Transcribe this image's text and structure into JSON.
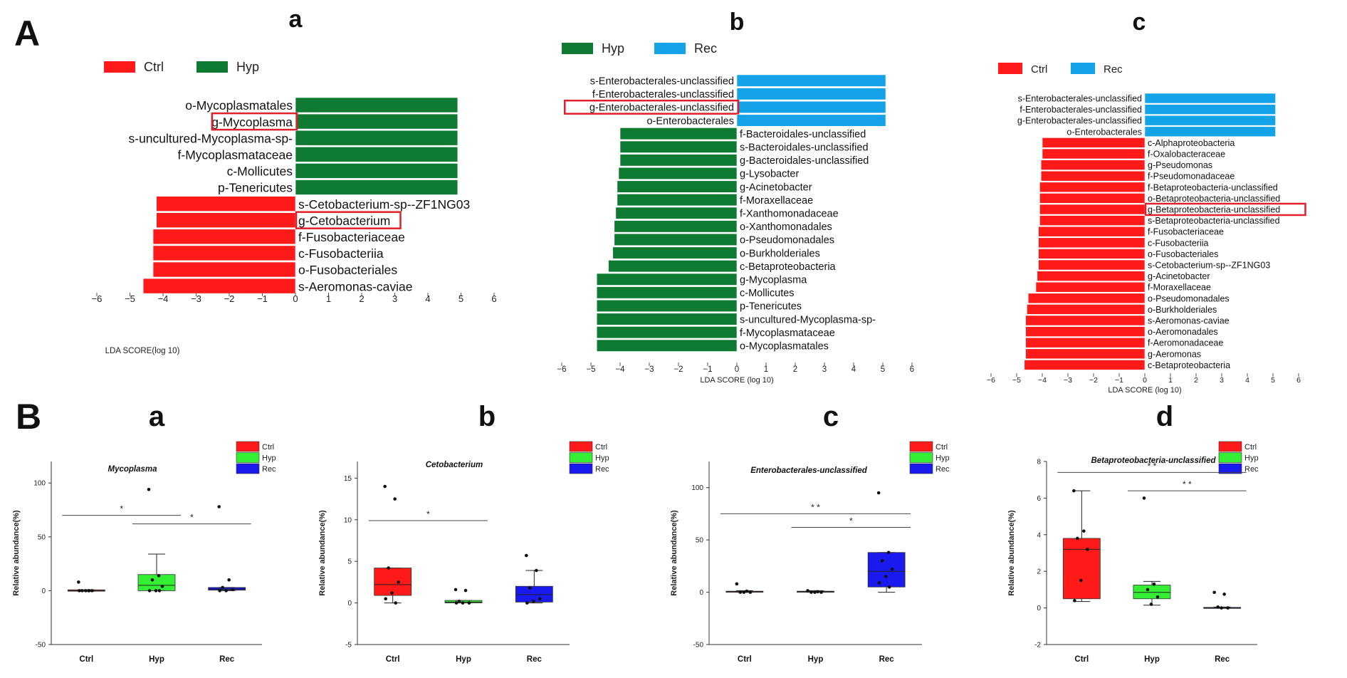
{
  "figure": {
    "panel_A": "A",
    "panel_B": "B",
    "colors": {
      "Ctrl": "#ff1a1a",
      "Hyp": "#0f7a32",
      "Rec": "#14a3e6",
      "Hyp_box": "#33ee33",
      "Rec_box": "#1a1aee",
      "highlight": "#e0202a"
    }
  },
  "chart_data": [
    {
      "id": "A_a",
      "type": "bar",
      "orientation": "horizontal",
      "panel": "a",
      "xlabel": "LDA SCORE(log 10)",
      "xlim": [
        -6,
        6
      ],
      "ticks": [
        -6,
        -5,
        -4,
        -3,
        -2,
        -1,
        0,
        1,
        2,
        3,
        4,
        5,
        6
      ],
      "legend": [
        "Ctrl",
        "Hyp"
      ],
      "legend_position": "top-left",
      "bars": [
        {
          "label": "o-Mycoplasmatales",
          "value": 4.9,
          "group": "Hyp"
        },
        {
          "label": "g-Mycoplasma",
          "value": 4.9,
          "group": "Hyp",
          "highlight": true
        },
        {
          "label": "s-uncultured-Mycoplasma-sp-",
          "value": 4.9,
          "group": "Hyp"
        },
        {
          "label": "f-Mycoplasmataceae",
          "value": 4.9,
          "group": "Hyp"
        },
        {
          "label": "c-Mollicutes",
          "value": 4.9,
          "group": "Hyp"
        },
        {
          "label": "p-Tenericutes",
          "value": 4.9,
          "group": "Hyp"
        },
        {
          "label": "s-Cetobacterium-sp--ZF1NG03",
          "value": -4.2,
          "group": "Ctrl"
        },
        {
          "label": "g-Cetobacterium",
          "value": -4.2,
          "group": "Ctrl",
          "highlight": true
        },
        {
          "label": "f-Fusobacteriaceae",
          "value": -4.3,
          "group": "Ctrl"
        },
        {
          "label": "c-Fusobacteriia",
          "value": -4.3,
          "group": "Ctrl"
        },
        {
          "label": "o-Fusobacteriales",
          "value": -4.3,
          "group": "Ctrl"
        },
        {
          "label": "s-Aeromonas-caviae",
          "value": -4.6,
          "group": "Ctrl"
        }
      ]
    },
    {
      "id": "A_b",
      "type": "bar",
      "orientation": "horizontal",
      "panel": "b",
      "xlabel": "LDA SCORE (log 10)",
      "xlim": [
        -6,
        6
      ],
      "ticks": [
        -6,
        -5,
        -4,
        -3,
        -2,
        -1,
        0,
        1,
        2,
        3,
        4,
        5,
        6
      ],
      "legend": [
        "Hyp",
        "Rec"
      ],
      "legend_position": "top-left",
      "bars": [
        {
          "label": "s-Enterobacterales-unclassified",
          "value": 5.1,
          "group": "Rec"
        },
        {
          "label": "f-Enterobacterales-unclassified",
          "value": 5.1,
          "group": "Rec"
        },
        {
          "label": "g-Enterobacterales-unclassified",
          "value": 5.1,
          "group": "Rec",
          "highlight": true
        },
        {
          "label": "o-Enterobacterales",
          "value": 5.1,
          "group": "Rec"
        },
        {
          "label": "f-Bacteroidales-unclassified",
          "value": -4.0,
          "group": "Hyp"
        },
        {
          "label": "s-Bacteroidales-unclassified",
          "value": -4.0,
          "group": "Hyp"
        },
        {
          "label": "g-Bacteroidales-unclassified",
          "value": -4.0,
          "group": "Hyp"
        },
        {
          "label": "g-Lysobacter",
          "value": -4.05,
          "group": "Hyp"
        },
        {
          "label": "g-Acinetobacter",
          "value": -4.1,
          "group": "Hyp"
        },
        {
          "label": "f-Moraxellaceae",
          "value": -4.1,
          "group": "Hyp"
        },
        {
          "label": "f-Xanthomonadaceae",
          "value": -4.15,
          "group": "Hyp"
        },
        {
          "label": "o-Xanthomonadales",
          "value": -4.2,
          "group": "Hyp"
        },
        {
          "label": "o-Pseudomonadales",
          "value": -4.2,
          "group": "Hyp"
        },
        {
          "label": "o-Burkholderiales",
          "value": -4.25,
          "group": "Hyp"
        },
        {
          "label": "c-Betaproteobacteria",
          "value": -4.4,
          "group": "Hyp"
        },
        {
          "label": "g-Mycoplasma",
          "value": -4.8,
          "group": "Hyp"
        },
        {
          "label": "c-Mollicutes",
          "value": -4.8,
          "group": "Hyp"
        },
        {
          "label": "p-Tenericutes",
          "value": -4.8,
          "group": "Hyp"
        },
        {
          "label": "s-uncultured-Mycoplasma-sp-",
          "value": -4.8,
          "group": "Hyp"
        },
        {
          "label": "f-Mycoplasmataceae",
          "value": -4.8,
          "group": "Hyp"
        },
        {
          "label": "o-Mycoplasmatales",
          "value": -4.8,
          "group": "Hyp"
        }
      ]
    },
    {
      "id": "A_c",
      "type": "bar",
      "orientation": "horizontal",
      "panel": "c",
      "xlabel": "LDA SCORE (log 10)",
      "xlim": [
        -6,
        6
      ],
      "ticks": [
        -6,
        -5,
        -4,
        -3,
        -2,
        -1,
        0,
        1,
        2,
        3,
        4,
        5,
        6
      ],
      "legend": [
        "Ctrl",
        "Rec"
      ],
      "legend_position": "top-left",
      "bars": [
        {
          "label": "s-Enterobacterales-unclassified",
          "value": 5.1,
          "group": "Rec"
        },
        {
          "label": "f-Enterobacterales-unclassified",
          "value": 5.1,
          "group": "Rec"
        },
        {
          "label": "g-Enterobacterales-unclassified",
          "value": 5.1,
          "group": "Rec"
        },
        {
          "label": "o-Enterobacterales",
          "value": 5.1,
          "group": "Rec"
        },
        {
          "label": "c-Alphaproteobacteria",
          "value": -4.0,
          "group": "Ctrl"
        },
        {
          "label": "f-Oxalobacteraceae",
          "value": -4.0,
          "group": "Ctrl"
        },
        {
          "label": "g-Pseudomonas",
          "value": -4.05,
          "group": "Ctrl"
        },
        {
          "label": "f-Pseudomonadaceae",
          "value": -4.05,
          "group": "Ctrl"
        },
        {
          "label": "f-Betaproteobacteria-unclassified",
          "value": -4.1,
          "group": "Ctrl"
        },
        {
          "label": "o-Betaproteobacteria-unclassified",
          "value": -4.1,
          "group": "Ctrl"
        },
        {
          "label": "g-Betaproteobacteria-unclassified",
          "value": -4.1,
          "group": "Ctrl",
          "highlight": true
        },
        {
          "label": "s-Betaproteobacteria-unclassified",
          "value": -4.1,
          "group": "Ctrl"
        },
        {
          "label": "f-Fusobacteriaceae",
          "value": -4.15,
          "group": "Ctrl"
        },
        {
          "label": "c-Fusobacteriia",
          "value": -4.15,
          "group": "Ctrl"
        },
        {
          "label": "o-Fusobacteriales",
          "value": -4.15,
          "group": "Ctrl"
        },
        {
          "label": "s-Cetobacterium-sp--ZF1NG03",
          "value": -4.15,
          "group": "Ctrl"
        },
        {
          "label": "g-Acinetobacter",
          "value": -4.2,
          "group": "Ctrl"
        },
        {
          "label": "f-Moraxellaceae",
          "value": -4.25,
          "group": "Ctrl"
        },
        {
          "label": "o-Pseudomonadales",
          "value": -4.55,
          "group": "Ctrl"
        },
        {
          "label": "o-Burkholderiales",
          "value": -4.6,
          "group": "Ctrl"
        },
        {
          "label": "s-Aeromonas-caviae",
          "value": -4.65,
          "group": "Ctrl"
        },
        {
          "label": "o-Aeromonadales",
          "value": -4.65,
          "group": "Ctrl"
        },
        {
          "label": "f-Aeromonadaceae",
          "value": -4.65,
          "group": "Ctrl"
        },
        {
          "label": "g-Aeromonas",
          "value": -4.65,
          "group": "Ctrl"
        },
        {
          "label": "c-Betaproteobacteria",
          "value": -4.7,
          "group": "Ctrl"
        }
      ]
    },
    {
      "id": "B_a",
      "type": "box",
      "panel": "a",
      "title": "Mycoplasma",
      "ylabel": "Relative abundance(%)",
      "ylim": [
        -50,
        120
      ],
      "yticks": [
        -50,
        0,
        50,
        100
      ],
      "categories": [
        "Ctrl",
        "Hyp",
        "Rec"
      ],
      "legend": [
        "Ctrl",
        "Hyp",
        "Rec"
      ],
      "boxes": [
        {
          "group": "Ctrl",
          "q1": -0.5,
          "median": 0.2,
          "q3": 0.8,
          "whisker_low": -0.5,
          "whisker_high": 0.8,
          "points": [
            8,
            0,
            0,
            0,
            0,
            0,
            0
          ]
        },
        {
          "group": "Hyp",
          "q1": 0,
          "median": 5,
          "q3": 15,
          "whisker_low": 0,
          "whisker_high": 34,
          "points": [
            94,
            14,
            10,
            4,
            0,
            0,
            0
          ]
        },
        {
          "group": "Rec",
          "q1": 0.5,
          "median": 1.5,
          "q3": 3,
          "whisker_low": 0,
          "whisker_high": 3,
          "points": [
            78,
            10,
            3,
            1,
            0,
            0
          ]
        }
      ],
      "significance": [
        {
          "from": "Ctrl",
          "to": "Hyp",
          "y": 70,
          "label": "*"
        },
        {
          "from": "Hyp",
          "to": "Rec",
          "y": 62,
          "label": "*"
        }
      ]
    },
    {
      "id": "B_b",
      "type": "box",
      "panel": "b",
      "title": "Cetobacterium",
      "ylabel": "Relative abundance(%)",
      "ylim": [
        -5,
        17
      ],
      "yticks": [
        -5,
        0,
        5,
        10,
        15
      ],
      "categories": [
        "Ctrl",
        "Hyp",
        "Rec"
      ],
      "legend": [
        "Ctrl",
        "Hyp",
        "Rec"
      ],
      "boxes": [
        {
          "group": "Ctrl",
          "q1": 0.9,
          "median": 2.2,
          "q3": 4.2,
          "whisker_low": 0,
          "whisker_high": 4.2,
          "points": [
            14,
            12.5,
            4.2,
            2.5,
            1.2,
            0.5,
            0
          ]
        },
        {
          "group": "Hyp",
          "q1": 0,
          "median": 0.1,
          "q3": 0.3,
          "whisker_low": 0,
          "whisker_high": 0.3,
          "points": [
            1.6,
            1.5,
            0.2,
            0,
            0,
            0
          ]
        },
        {
          "group": "Rec",
          "q1": 0.1,
          "median": 1.0,
          "q3": 2.0,
          "whisker_low": 0,
          "whisker_high": 3.9,
          "points": [
            5.7,
            3.9,
            1.8,
            0.5,
            0.2,
            0
          ]
        }
      ],
      "significance": [
        {
          "from": "Ctrl",
          "to": "Hyp",
          "y": 9.9,
          "label": "*"
        }
      ]
    },
    {
      "id": "B_c",
      "type": "box",
      "panel": "c",
      "title": "Enterobacterales-unclassified",
      "ylabel": "Relative abundance(%)",
      "ylim": [
        -50,
        125
      ],
      "yticks": [
        -50,
        0,
        50,
        100
      ],
      "categories": [
        "Ctrl",
        "Hyp",
        "Rec"
      ],
      "legend": [
        "Ctrl",
        "Hyp",
        "Rec"
      ],
      "boxes": [
        {
          "group": "Ctrl",
          "q1": 0,
          "median": 0.5,
          "q3": 1,
          "whisker_low": 0,
          "whisker_high": 1.5,
          "points": [
            8,
            1,
            0,
            0,
            0
          ]
        },
        {
          "group": "Hyp",
          "q1": 0,
          "median": 0.5,
          "q3": 1,
          "whisker_low": 0,
          "whisker_high": 1.5,
          "points": [
            1.5,
            0.5,
            0,
            0,
            0
          ]
        },
        {
          "group": "Rec",
          "q1": 5,
          "median": 20,
          "q3": 38,
          "whisker_low": 0,
          "whisker_high": 38,
          "points": [
            95,
            38,
            30,
            22,
            15,
            9,
            5
          ]
        }
      ],
      "significance": [
        {
          "from": "Ctrl",
          "to": "Rec",
          "y": 75,
          "label": "* *"
        },
        {
          "from": "Hyp",
          "to": "Rec",
          "y": 62,
          "label": "*"
        }
      ]
    },
    {
      "id": "B_d",
      "type": "box",
      "panel": "d",
      "title": "Betaproteobacteria-unclassified",
      "ylabel": "Relative abundance(%)",
      "ylim": [
        -2,
        8
      ],
      "yticks": [
        -2,
        0,
        2,
        4,
        6,
        8
      ],
      "categories": [
        "Ctrl",
        "Hyp",
        "Rec"
      ],
      "legend": [
        "Ctrl",
        "Hyp",
        "Rec"
      ],
      "boxes": [
        {
          "group": "Ctrl",
          "q1": 0.5,
          "median": 3.2,
          "q3": 3.8,
          "whisker_low": 0.35,
          "whisker_high": 6.4,
          "points": [
            6.4,
            4.2,
            3.8,
            3.2,
            1.5,
            0.4
          ]
        },
        {
          "group": "Hyp",
          "q1": 0.5,
          "median": 0.85,
          "q3": 1.25,
          "whisker_low": 0.15,
          "whisker_high": 1.45,
          "points": [
            6.0,
            1.3,
            1.0,
            0.6,
            0.2
          ]
        },
        {
          "group": "Rec",
          "q1": 0,
          "median": 0.01,
          "q3": 0.03,
          "whisker_low": 0,
          "whisker_high": 0.05,
          "points": [
            0.85,
            0.75,
            0.05,
            0,
            0
          ]
        }
      ],
      "significance": [
        {
          "from": "Ctrl",
          "to": "Rec",
          "y": 7.4,
          "label": "* *"
        },
        {
          "from": "Hyp",
          "to": "Rec",
          "y": 6.4,
          "label": "* *"
        }
      ]
    }
  ]
}
